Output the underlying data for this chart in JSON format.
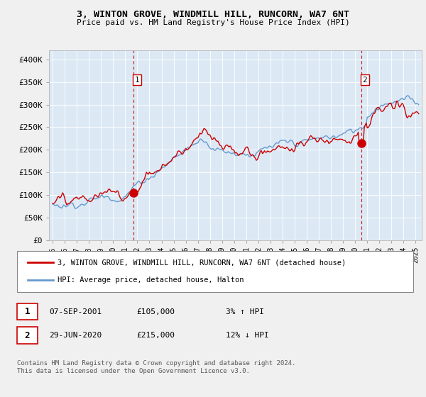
{
  "title": "3, WINTON GROVE, WINDMILL HILL, RUNCORN, WA7 6NT",
  "subtitle": "Price paid vs. HM Land Registry's House Price Index (HPI)",
  "ylabel_ticks": [
    "£0",
    "£50K",
    "£100K",
    "£150K",
    "£200K",
    "£250K",
    "£300K",
    "£350K",
    "£400K"
  ],
  "ytick_vals": [
    0,
    50000,
    100000,
    150000,
    200000,
    250000,
    300000,
    350000,
    400000
  ],
  "ylim": [
    0,
    420000
  ],
  "xlim_start": 1994.7,
  "xlim_end": 2025.5,
  "bg_color": "#f0f0f0",
  "plot_bg_color": "#dce9f5",
  "hpi_color": "#6699cc",
  "price_color": "#cc0000",
  "marker1_date": 2001.69,
  "marker1_price": 105000,
  "marker2_date": 2020.49,
  "marker2_price": 215000,
  "legend_label1": "3, WINTON GROVE, WINDMILL HILL, RUNCORN, WA7 6NT (detached house)",
  "legend_label2": "HPI: Average price, detached house, Halton",
  "table_row1": [
    "1",
    "07-SEP-2001",
    "£105,000",
    "3% ↑ HPI"
  ],
  "table_row2": [
    "2",
    "29-JUN-2020",
    "£215,000",
    "12% ↓ HPI"
  ],
  "footer": "Contains HM Land Registry data © Crown copyright and database right 2024.\nThis data is licensed under the Open Government Licence v3.0.",
  "xtick_years": [
    1995,
    1996,
    1997,
    1998,
    1999,
    2000,
    2001,
    2002,
    2003,
    2004,
    2005,
    2006,
    2007,
    2008,
    2009,
    2010,
    2011,
    2012,
    2013,
    2014,
    2015,
    2016,
    2017,
    2018,
    2019,
    2020,
    2021,
    2022,
    2023,
    2024,
    2025
  ]
}
